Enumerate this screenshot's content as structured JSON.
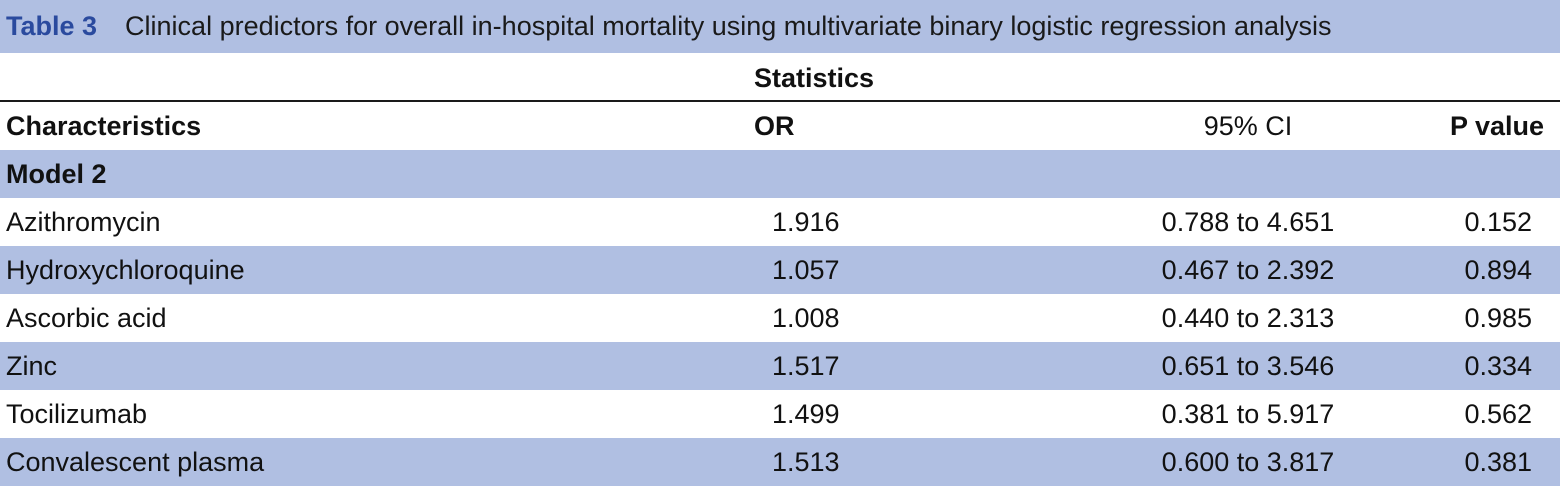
{
  "caption": {
    "label": "Table 3",
    "text": "Clinical predictors for overall in-hospital mortality using multivariate binary logistic regression analysis"
  },
  "header": {
    "statistics": "Statistics",
    "columns": [
      "Characteristics",
      "OR",
      "95% CI",
      "P value"
    ]
  },
  "section": "Model 2",
  "rows": [
    {
      "name": "Azithromycin",
      "or": "1.916",
      "ci": "0.788 to 4.651",
      "p": "0.152"
    },
    {
      "name": "Hydroxychloroquine",
      "or": "1.057",
      "ci": "0.467 to 2.392",
      "p": "0.894"
    },
    {
      "name": "Ascorbic acid",
      "or": "1.008",
      "ci": "0.440 to 2.313",
      "p": "0.985"
    },
    {
      "name": "Zinc",
      "or": "1.517",
      "ci": "0.651 to 3.546",
      "p": "0.334"
    },
    {
      "name": "Tocilizumab",
      "or": "1.499",
      "ci": "0.381 to 5.917",
      "p": "0.562"
    },
    {
      "name": "Convalescent plasma",
      "or": "1.513",
      "ci": "0.600 to 3.817",
      "p": "0.381"
    }
  ],
  "colors": {
    "caption_label": "#2a4a9e",
    "shade": "#b0bfe2"
  }
}
